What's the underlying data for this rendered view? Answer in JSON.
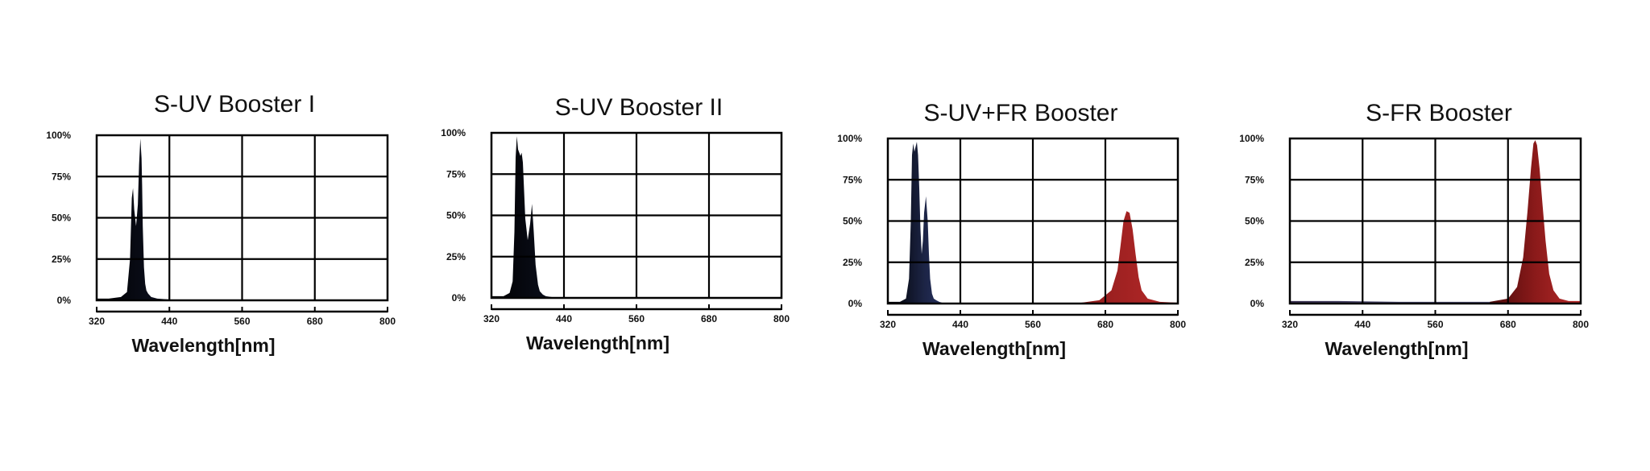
{
  "chart_data": [
    {
      "type": "area",
      "title": "S-UV Booster I",
      "xlabel": "Wavelength[nm]",
      "ylabel": "",
      "xlim": [
        320,
        800
      ],
      "ylim": [
        0,
        100
      ],
      "x_ticks": [
        "320",
        "440",
        "560",
        "680",
        "800"
      ],
      "y_ticks": [
        "0%",
        "25%",
        "50%",
        "75%",
        "100%"
      ],
      "grid": true,
      "series": [
        {
          "fill": [
            "#000000",
            "#1c2445",
            "#2f3d78"
          ],
          "x": [
            320,
            340,
            360,
            370,
            375,
            378,
            380,
            382,
            385,
            388,
            390,
            392,
            394,
            395,
            396,
            398,
            400,
            402,
            405,
            410,
            420,
            440,
            500,
            600,
            700,
            800
          ],
          "y": [
            1,
            1,
            2,
            5,
            25,
            62,
            68,
            55,
            45,
            58,
            82,
            98,
            86,
            70,
            45,
            20,
            10,
            6,
            4,
            2,
            1,
            0.5,
            0.3,
            0.3,
            0.3,
            0.3
          ]
        }
      ]
    },
    {
      "type": "area",
      "title": "S-UV Booster II",
      "xlabel": "Wavelength[nm]",
      "ylabel": "",
      "xlim": [
        320,
        800
      ],
      "ylim": [
        0,
        100
      ],
      "x_ticks": [
        "320",
        "440",
        "560",
        "680",
        "800"
      ],
      "y_ticks": [
        "0%",
        "25%",
        "50%",
        "75%",
        "100%"
      ],
      "grid": true,
      "series": [
        {
          "fill": [
            "#000000",
            "#1c2445",
            "#2f3d78"
          ],
          "x": [
            320,
            340,
            350,
            355,
            358,
            360,
            362,
            364,
            366,
            368,
            370,
            372,
            374,
            376,
            380,
            384,
            387,
            390,
            393,
            397,
            400,
            405,
            410,
            420,
            440,
            500,
            600,
            700,
            800
          ],
          "y": [
            1,
            1,
            3,
            10,
            40,
            85,
            98,
            90,
            88,
            86,
            88,
            82,
            65,
            48,
            35,
            45,
            57,
            40,
            20,
            8,
            4,
            2,
            1,
            0.5,
            0.3,
            0.3,
            0.3,
            0.3,
            0.3
          ]
        }
      ]
    },
    {
      "type": "area",
      "title": "S-UV+FR Booster",
      "xlabel": "Wavelength[nm]",
      "ylabel": "",
      "xlim": [
        320,
        800
      ],
      "ylim": [
        0,
        100
      ],
      "x_ticks": [
        "320",
        "440",
        "560",
        "680",
        "800"
      ],
      "y_ticks": [
        "0%",
        "25%",
        "50%",
        "75%",
        "100%"
      ],
      "grid": true,
      "series": [
        {
          "fill": [
            "#000000",
            "#1c2445",
            "#2f3d78"
          ],
          "x": [
            320,
            340,
            350,
            355,
            358,
            360,
            362,
            364,
            366,
            368,
            370,
            372,
            374,
            376,
            378,
            380,
            383,
            386,
            388,
            390,
            393,
            396,
            400,
            405,
            410,
            420,
            440
          ],
          "y": [
            1,
            1,
            3,
            15,
            50,
            90,
            97,
            92,
            95,
            98,
            90,
            70,
            45,
            30,
            38,
            55,
            65,
            50,
            30,
            15,
            6,
            3,
            2,
            1,
            0.5,
            0.3,
            0.3
          ]
        },
        {
          "fill": [
            "#4a0a0a",
            "#8b1a1a",
            "#b82a2a"
          ],
          "x": [
            440,
            560,
            640,
            670,
            690,
            700,
            705,
            710,
            715,
            720,
            725,
            730,
            735,
            740,
            750,
            770,
            800
          ],
          "y": [
            0.3,
            0.3,
            0.5,
            2,
            8,
            20,
            35,
            50,
            56,
            55,
            45,
            30,
            16,
            8,
            3,
            1,
            0.5
          ]
        }
      ]
    },
    {
      "type": "area",
      "title": "S-FR Booster",
      "xlabel": "Wavelength[nm]",
      "ylabel": "",
      "xlim": [
        320,
        800
      ],
      "ylim": [
        0,
        100
      ],
      "x_ticks": [
        "320",
        "440",
        "560",
        "680",
        "800"
      ],
      "y_ticks": [
        "0%",
        "25%",
        "50%",
        "75%",
        "100%"
      ],
      "grid": true,
      "series": [
        {
          "fill": [
            "#3a3050",
            "#4a4a70",
            "#5a5a80"
          ],
          "x": [
            320,
            400,
            500,
            600,
            650,
            680
          ],
          "y": [
            1.5,
            1.5,
            1,
            1,
            1,
            1
          ]
        },
        {
          "fill": [
            "#4a0a0a",
            "#8b1a1a",
            "#b82a2a"
          ],
          "x": [
            650,
            680,
            695,
            705,
            712,
            718,
            722,
            725,
            728,
            732,
            737,
            742,
            748,
            755,
            765,
            780,
            800
          ],
          "y": [
            1,
            3,
            10,
            28,
            55,
            82,
            97,
            99,
            96,
            82,
            60,
            38,
            18,
            8,
            3,
            1.5,
            1.5
          ]
        }
      ]
    }
  ]
}
